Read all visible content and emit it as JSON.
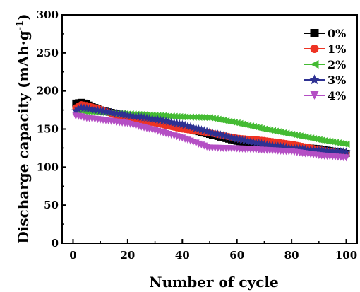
{
  "chart_data": {
    "type": "line",
    "xlabel": "Number of cycle",
    "ylabel": "Discharge capacity (mAh·g",
    "ylabel_superscript": "-1",
    "ylabel_close": ")",
    "xlim": [
      -4,
      104
    ],
    "ylim": [
      0,
      300
    ],
    "xticks": [
      0,
      20,
      40,
      60,
      80,
      100
    ],
    "yticks": [
      0,
      50,
      100,
      150,
      200,
      250,
      300
    ],
    "grid": false,
    "legend_position": "top-right",
    "series": [
      {
        "name": "0%",
        "color": "#000000",
        "marker": "square",
        "x": [
          1,
          3,
          5,
          10,
          20,
          30,
          40,
          50,
          60,
          70,
          80,
          90,
          100
        ],
        "y": [
          184,
          185,
          183,
          175,
          167,
          162,
          152,
          143,
          134,
          128,
          127,
          124,
          118
        ]
      },
      {
        "name": "1%",
        "color": "#ee3323",
        "marker": "circle",
        "x": [
          1,
          3,
          5,
          10,
          20,
          30,
          40,
          50,
          60,
          70,
          80,
          90,
          100
        ],
        "y": [
          178,
          182,
          181,
          176,
          162,
          158,
          150,
          145,
          138,
          135,
          130,
          123,
          117
        ]
      },
      {
        "name": "2%",
        "color": "#44bb33",
        "marker": "triangle-left",
        "x": [
          1,
          3,
          5,
          10,
          20,
          30,
          40,
          50,
          60,
          70,
          80,
          90,
          100
        ],
        "y": [
          170,
          174,
          173,
          172,
          170,
          168,
          166,
          165,
          158,
          150,
          143,
          136,
          130
        ]
      },
      {
        "name": "3%",
        "color": "#2e3192",
        "marker": "star",
        "x": [
          1,
          3,
          5,
          10,
          20,
          30,
          40,
          50,
          60,
          70,
          80,
          90,
          100
        ],
        "y": [
          174,
          178,
          177,
          174,
          168,
          163,
          156,
          146,
          137,
          130,
          125,
          122,
          120
        ]
      },
      {
        "name": "4%",
        "color": "#b44fc4",
        "marker": "triangle-down",
        "x": [
          1,
          3,
          5,
          10,
          20,
          30,
          40,
          50,
          60,
          70,
          80,
          90,
          100
        ],
        "y": [
          167,
          166,
          164,
          162,
          157,
          148,
          138,
          125,
          124,
          122,
          120,
          115,
          112
        ]
      }
    ]
  }
}
